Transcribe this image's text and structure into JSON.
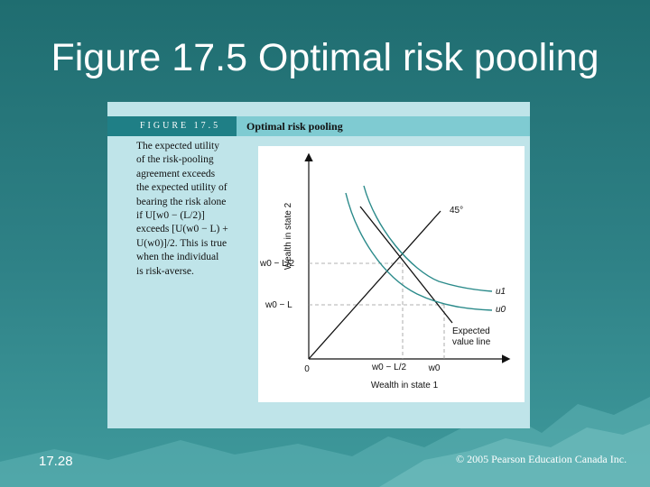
{
  "slide": {
    "title": "Figure 17.5 Optimal risk pooling",
    "number": "17.28",
    "copyright": "© 2005 Pearson Education Canada Inc."
  },
  "figure": {
    "label": "FIGURE 17.5",
    "title": "Optimal risk pooling",
    "caption_lines": [
      "The expected utility",
      "of the risk-pooling",
      "agreement exceeds",
      "the expected utility of",
      "bearing the risk alone",
      "if U[w0 − (L/2)]",
      "exceeds [U(w0 − L) +",
      "U(w0)]/2. This is true",
      "when the individual",
      "is risk-averse."
    ]
  },
  "diagram": {
    "y_axis_label": "Wealth in state 2",
    "x_axis_label": "Wealth in state 1",
    "origin_label": "0",
    "y_tick_upper": "w0 − L/2",
    "y_tick_lower": "w0 − L",
    "x_tick_left": "w0 − L/2",
    "x_tick_right": "w0",
    "degree_label": "45°",
    "curve_u1_label": "u1",
    "curve_u0_label": "u0",
    "expected_value_label_1": "Expected",
    "expected_value_label_2": "value line"
  },
  "colors": {
    "curve": "#2a8a8a",
    "dash": "#888888"
  }
}
